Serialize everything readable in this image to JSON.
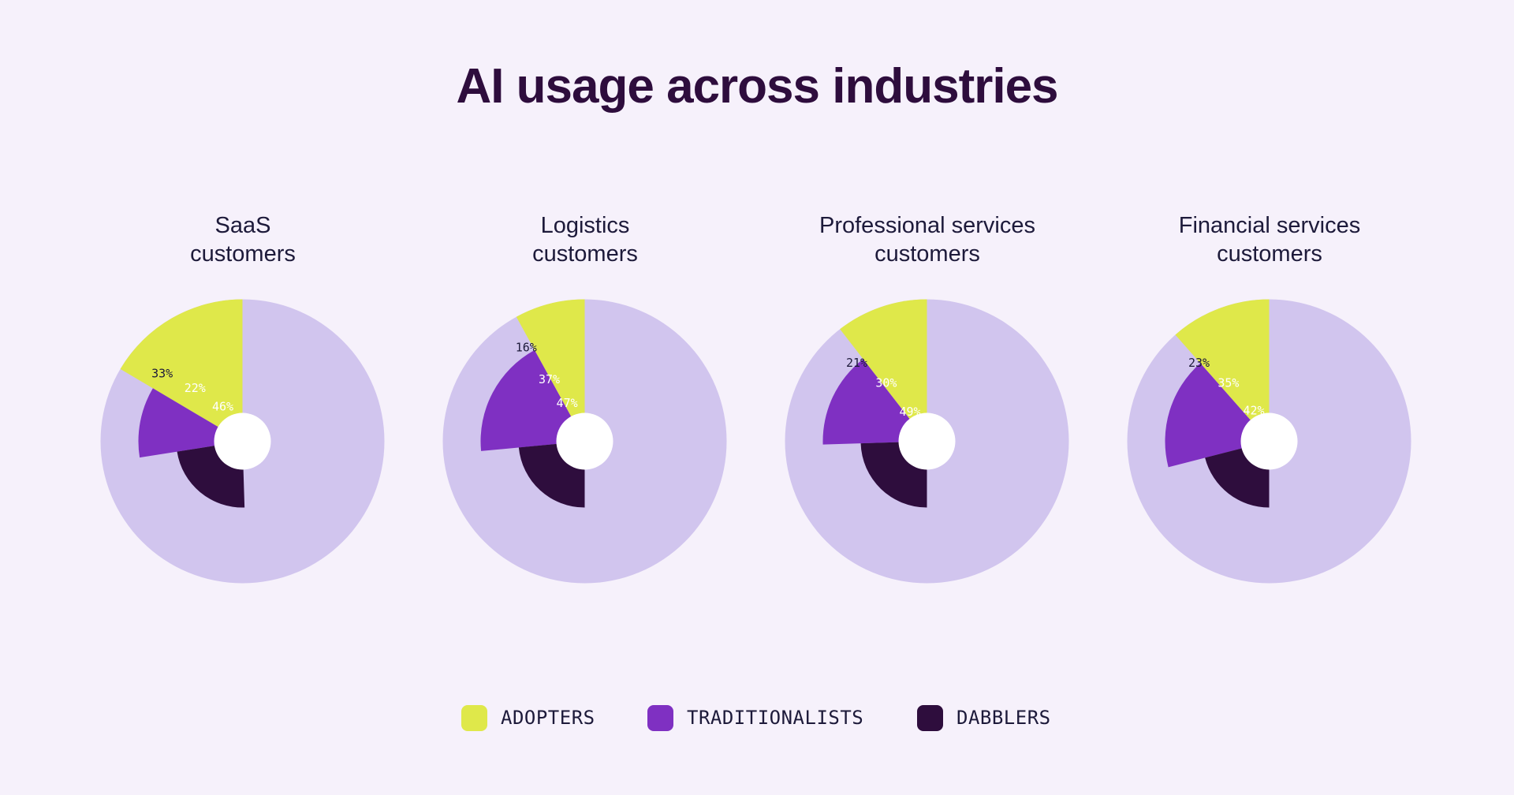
{
  "page": {
    "title": "AI usage across industries"
  },
  "colors": {
    "background": "#f6f1fb",
    "remainder": "#d1c5ee",
    "adopters": "#dfe84a",
    "traditionalists": "#7f30c2",
    "dabblers": "#2e0d3d",
    "hole": "#ffffff"
  },
  "legend": [
    {
      "label": "ADOPTERS",
      "color": "#dfe84a"
    },
    {
      "label": "TRADITIONALISTS",
      "color": "#7f30c2"
    },
    {
      "label": "DABBLERS",
      "color": "#2e0d3d"
    }
  ],
  "chart_data": [
    {
      "type": "pie",
      "title": "SaaS customers",
      "title_lines": [
        "SaaS",
        "customers"
      ],
      "series": [
        {
          "name": "ADOPTERS",
          "value": 33,
          "label": "33%"
        },
        {
          "name": "TRADITIONALISTS",
          "value": 22,
          "label": "22%"
        },
        {
          "name": "DABBLERS",
          "value": 46,
          "label": "46%"
        }
      ]
    },
    {
      "type": "pie",
      "title": "Logistics customers",
      "title_lines": [
        "Logistics",
        "customers"
      ],
      "series": [
        {
          "name": "ADOPTERS",
          "value": 16,
          "label": "16%"
        },
        {
          "name": "TRADITIONALISTS",
          "value": 37,
          "label": "37%"
        },
        {
          "name": "DABBLERS",
          "value": 47,
          "label": "47%"
        }
      ]
    },
    {
      "type": "pie",
      "title": "Professional services customers",
      "title_lines": [
        "Professional services",
        "customers"
      ],
      "series": [
        {
          "name": "ADOPTERS",
          "value": 21,
          "label": "21%"
        },
        {
          "name": "TRADITIONALISTS",
          "value": 30,
          "label": "30%"
        },
        {
          "name": "DABBLERS",
          "value": 49,
          "label": "49%"
        }
      ]
    },
    {
      "type": "pie",
      "title": "Financial services customers",
      "title_lines": [
        "Financial services",
        "customers"
      ],
      "series": [
        {
          "name": "ADOPTERS",
          "value": 23,
          "label": "23%"
        },
        {
          "name": "TRADITIONALISTS",
          "value": 35,
          "label": "35%"
        },
        {
          "name": "DABBLERS",
          "value": 42,
          "label": "42%"
        }
      ]
    }
  ]
}
